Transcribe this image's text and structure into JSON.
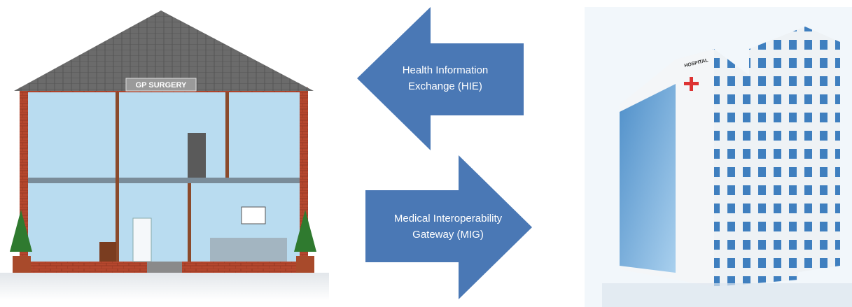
{
  "nodes": [
    {
      "label": "GP SURGERY"
    },
    {
      "label": "HOSPITAL"
    }
  ],
  "arrows": [
    {
      "label": [
        "Health Information",
        "Exchange (HIE)"
      ]
    },
    {
      "label": [
        "Medical Interoperability",
        "Gateway (MIG)"
      ]
    }
  ]
}
